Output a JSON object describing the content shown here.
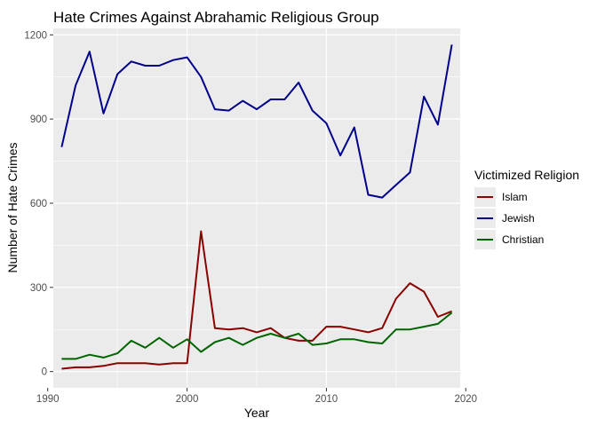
{
  "chart_data": {
    "type": "line",
    "title": "Hate Crimes Against Abrahamic Religious Group",
    "xlabel": "Year",
    "ylabel": "Number of Hate Crimes",
    "xlim": [
      1990.4,
      2019.6
    ],
    "ylim": [
      -58,
      1223
    ],
    "x_ticks": [
      1990,
      2000,
      2010,
      2020
    ],
    "y_ticks": [
      0,
      300,
      600,
      900,
      1200
    ],
    "grid": true,
    "legend": {
      "title": "Victimized Religion",
      "placement": "right"
    },
    "x": [
      1991,
      1992,
      1993,
      1994,
      1995,
      1996,
      1997,
      1998,
      1999,
      2000,
      2001,
      2002,
      2003,
      2004,
      2005,
      2006,
      2007,
      2008,
      2009,
      2010,
      2011,
      2012,
      2013,
      2014,
      2015,
      2016,
      2017,
      2018,
      2019
    ],
    "series": [
      {
        "name": "Islam",
        "color": "#8b0000",
        "values": [
          10,
          15,
          15,
          20,
          30,
          30,
          30,
          25,
          30,
          30,
          500,
          155,
          150,
          155,
          140,
          155,
          120,
          110,
          110,
          160,
          160,
          150,
          140,
          155,
          260,
          315,
          285,
          195,
          215
        ]
      },
      {
        "name": "Jewish",
        "color": "#00008b",
        "values": [
          800,
          1020,
          1140,
          920,
          1060,
          1105,
          1090,
          1090,
          1110,
          1120,
          1050,
          935,
          930,
          965,
          935,
          970,
          970,
          1030,
          930,
          885,
          770,
          870,
          630,
          620,
          665,
          710,
          980,
          880,
          1165
        ]
      },
      {
        "name": "Christian",
        "color": "#006400",
        "values": [
          45,
          45,
          60,
          50,
          65,
          110,
          85,
          120,
          85,
          115,
          70,
          105,
          120,
          95,
          120,
          135,
          120,
          135,
          95,
          100,
          115,
          115,
          105,
          100,
          150,
          150,
          160,
          170,
          210
        ]
      }
    ]
  }
}
